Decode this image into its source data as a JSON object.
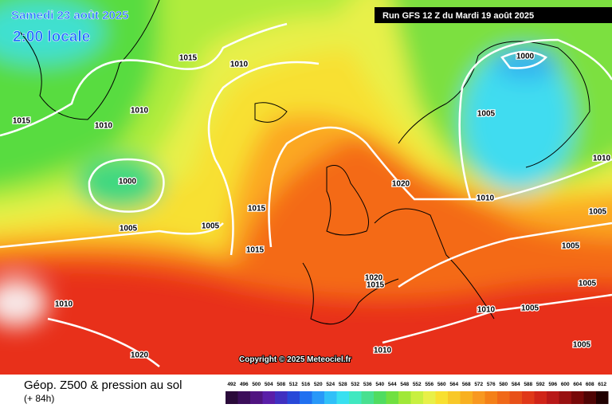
{
  "header": {
    "date": "Samedi 23 août 2025",
    "time": "2:00 locale",
    "run": "Run GFS 12 Z du Mardi 19 août 2025"
  },
  "map": {
    "copyright": "Copyright © 2025 Meteociel.fr",
    "isobar_labels": [
      "1015",
      "1010",
      "1015",
      "1010",
      "1010",
      "1000",
      "1005",
      "1005",
      "1015",
      "1015",
      "1020",
      "1000",
      "1005",
      "1010",
      "1010",
      "1005",
      "1005",
      "1005",
      "1010",
      "1005",
      "1020",
      "1015",
      "1010",
      "1020",
      "1010",
      "1005"
    ]
  },
  "footer": {
    "title": "Géop. Z500 & pression au sol",
    "lead": "(+ 84h)",
    "scale": [
      492,
      496,
      500,
      504,
      508,
      512,
      516,
      520,
      524,
      528,
      532,
      536,
      540,
      544,
      548,
      552,
      556,
      560,
      564,
      568,
      572,
      576,
      580,
      584,
      588,
      592,
      596,
      600,
      604,
      608,
      612
    ]
  }
}
